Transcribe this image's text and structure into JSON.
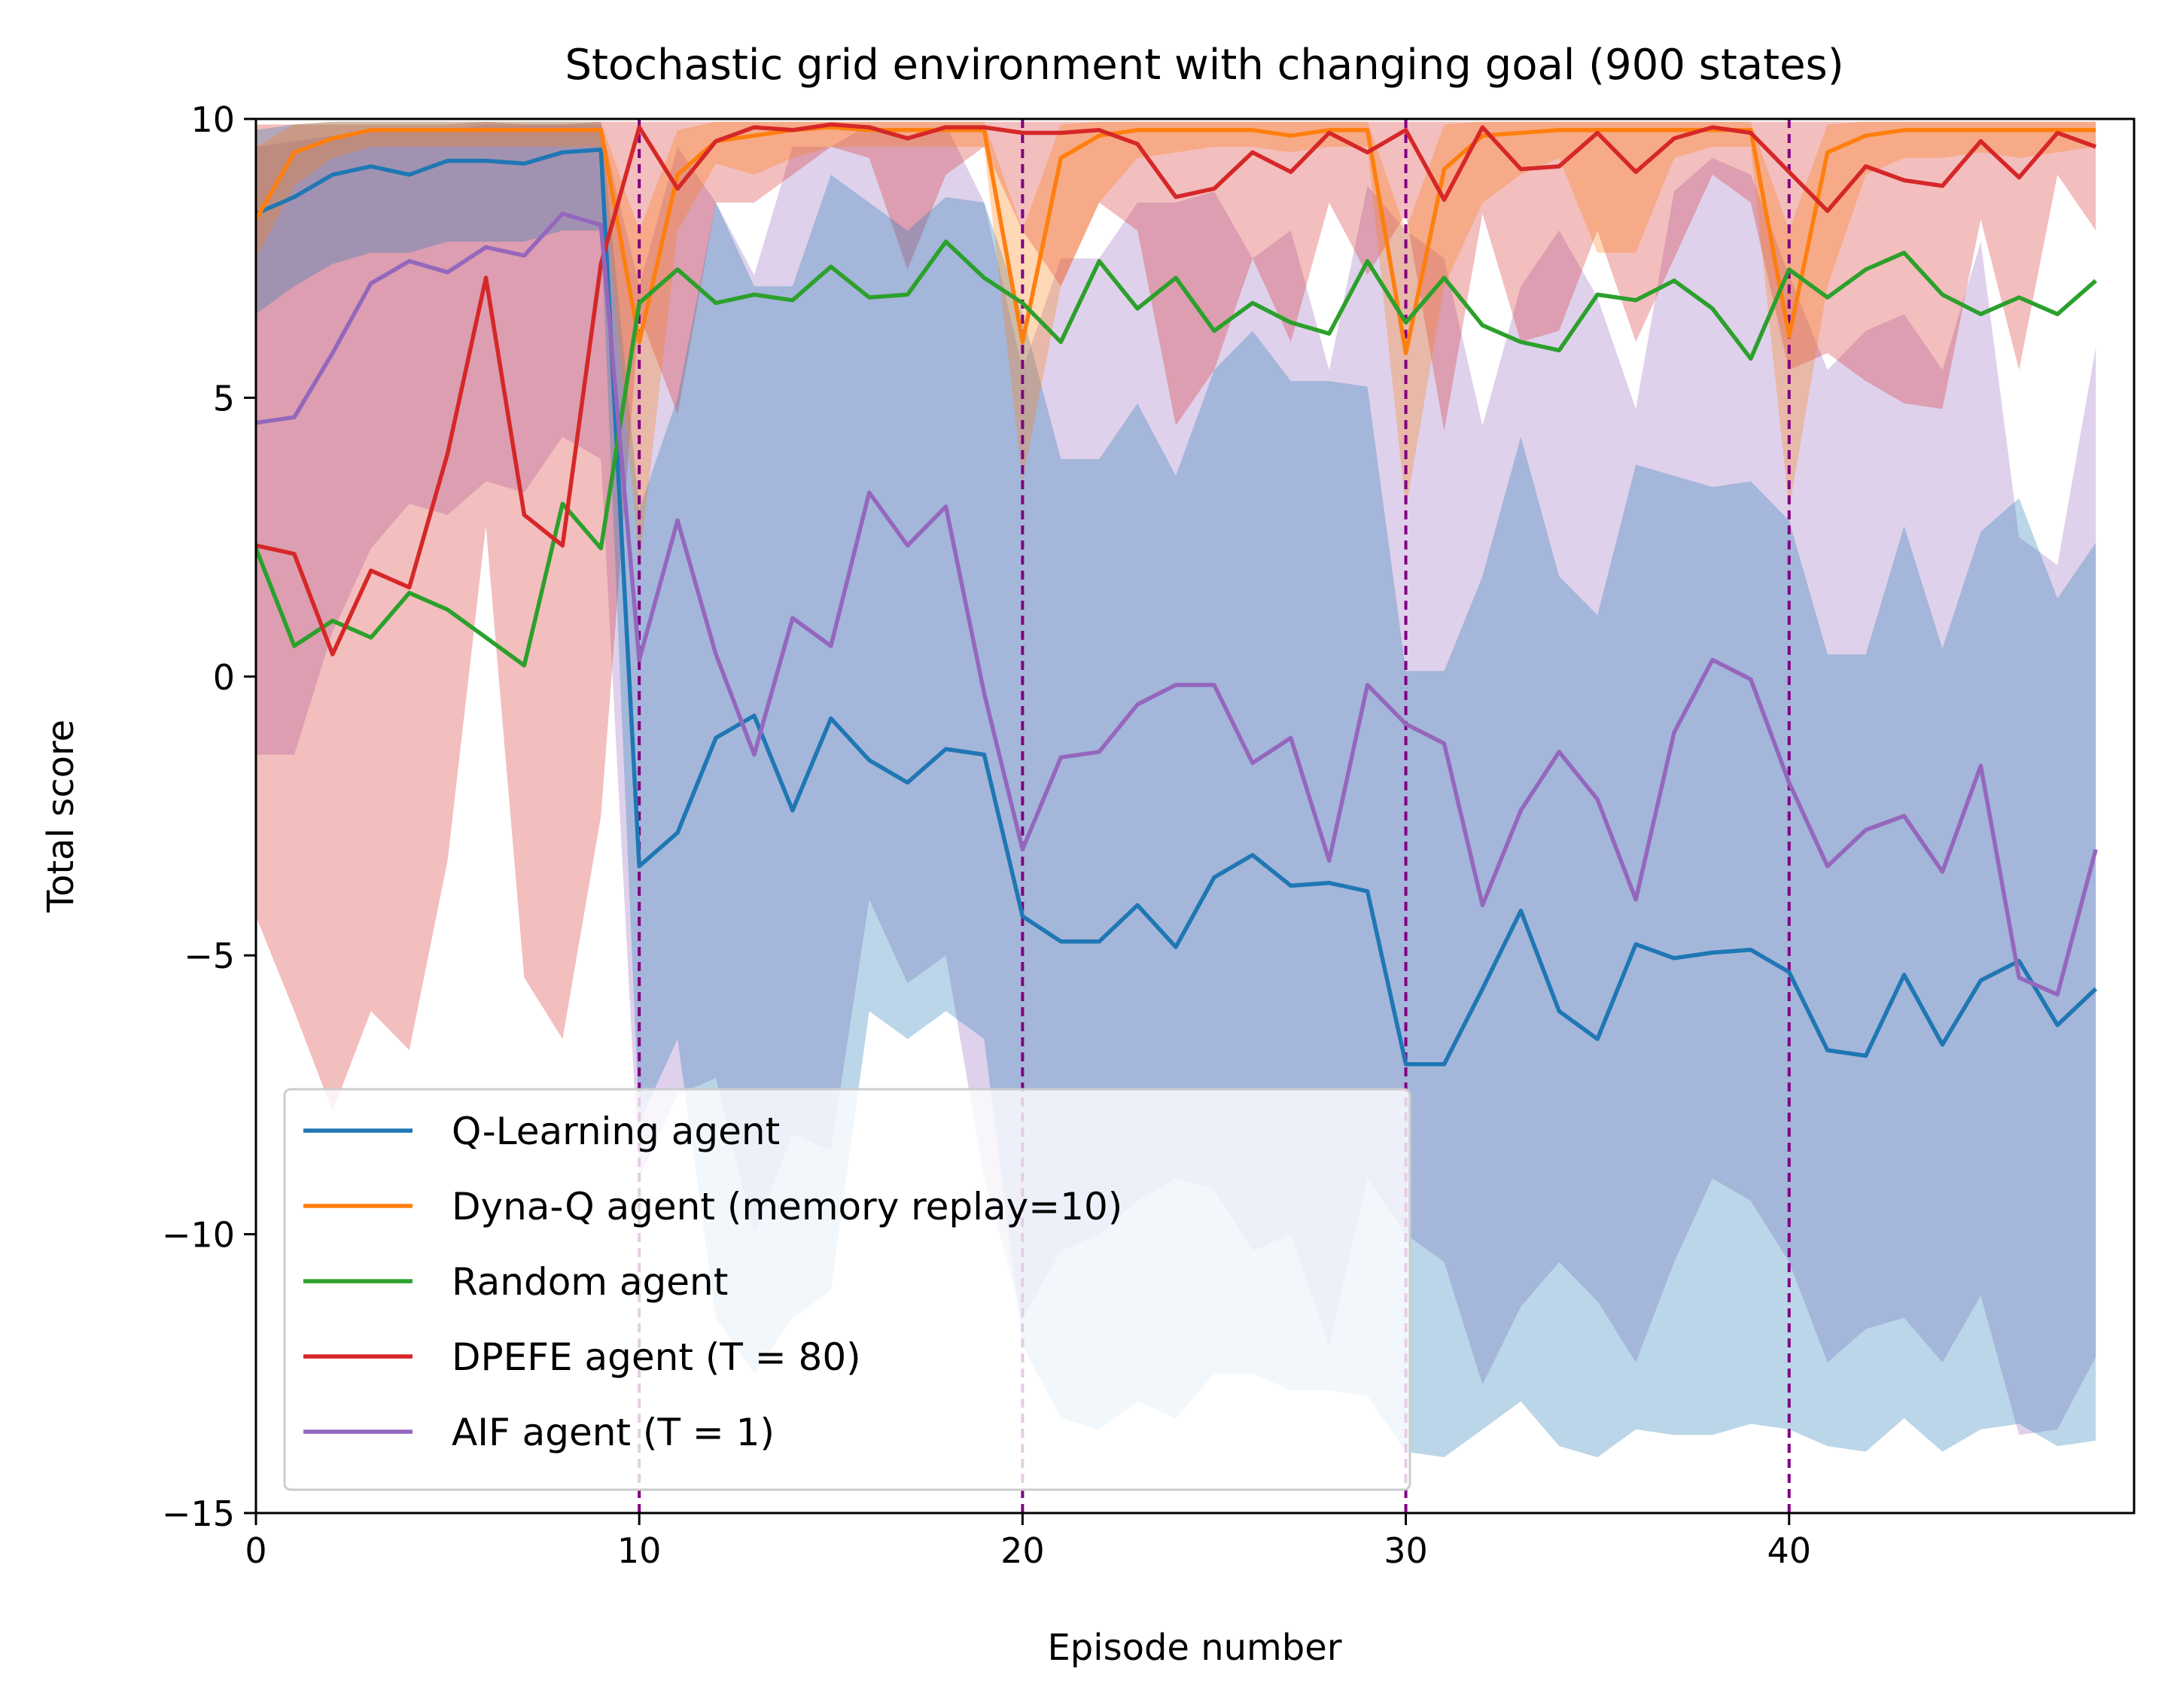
{
  "chart_data": {
    "type": "line",
    "title": "Stochastic grid environment with changing goal (900 states)",
    "xlabel": "Episode number",
    "ylabel": "Total score",
    "xlim": [
      0,
      49
    ],
    "ylim": [
      -15,
      10
    ],
    "xticks": [
      0,
      10,
      20,
      30,
      40
    ],
    "yticks": [
      10,
      5,
      0,
      -5,
      -10,
      -15
    ],
    "ytick_labels": [
      "10",
      "5",
      "0",
      "−5",
      "−10",
      "−15"
    ],
    "xtick_labels": [
      "0",
      "10",
      "20",
      "30",
      "40"
    ],
    "grid": false,
    "legend_position": "lower-left",
    "goal_change_lines": {
      "x": [
        10,
        20,
        30,
        40
      ],
      "color": "#800080",
      "style": "dashed"
    },
    "series": [
      {
        "name": "Q-Learning agent",
        "color": "#1f77b4",
        "x": [
          0,
          1,
          2,
          3,
          4,
          5,
          6,
          7,
          8,
          9,
          10,
          11,
          12,
          13,
          14,
          15,
          16,
          17,
          18,
          19,
          20,
          21,
          22,
          23,
          24,
          25,
          26,
          27,
          28,
          29,
          30,
          31,
          32,
          33,
          34,
          35,
          36,
          37,
          38,
          39,
          40,
          41,
          42,
          43,
          44,
          45,
          46,
          47,
          48
        ],
        "values": [
          8.3,
          8.6,
          9.0,
          9.15,
          9.0,
          9.25,
          9.25,
          9.2,
          9.4,
          9.45,
          -3.4,
          -2.8,
          -1.1,
          -0.7,
          -2.4,
          -0.75,
          -1.5,
          -1.9,
          -1.3,
          -1.4,
          -4.3,
          -4.75,
          -4.75,
          -4.1,
          -4.85,
          -3.6,
          -3.2,
          -3.75,
          -3.7,
          -3.85,
          -6.95,
          -6.95,
          -5.6,
          -4.2,
          -6.0,
          -6.5,
          -4.8,
          -5.05,
          -4.95,
          -4.9,
          -5.3,
          -6.7,
          -6.8,
          -5.35,
          -6.6,
          -5.45,
          -5.1,
          -6.25,
          -5.6
        ],
        "band_low": [
          6.5,
          7.0,
          7.4,
          7.6,
          7.6,
          7.8,
          7.8,
          7.8,
          8.0,
          8.0,
          -8.0,
          -6.5,
          -11.5,
          -12.5,
          -11.5,
          -11.0,
          -6.0,
          -6.5,
          -6.0,
          -6.5,
          -12.0,
          -13.3,
          -13.5,
          -13.0,
          -13.3,
          -12.5,
          -12.5,
          -12.8,
          -12.8,
          -12.9,
          -13.9,
          -14.0,
          -13.5,
          -13.0,
          -13.8,
          -14.0,
          -13.5,
          -13.6,
          -13.6,
          -13.4,
          -13.5,
          -13.8,
          -13.9,
          -13.3,
          -13.9,
          -13.5,
          -13.4,
          -13.8,
          -13.7
        ],
        "band_high": [
          9.8,
          9.9,
          9.95,
          9.95,
          9.95,
          9.95,
          9.95,
          9.95,
          9.95,
          9.95,
          3.0,
          5.0,
          8.5,
          7.0,
          7.0,
          9.0,
          8.5,
          8.0,
          8.6,
          8.5,
          6.5,
          3.9,
          3.9,
          4.9,
          3.6,
          5.5,
          6.2,
          5.3,
          5.3,
          5.2,
          0.1,
          0.1,
          1.8,
          4.3,
          1.8,
          1.1,
          3.8,
          3.6,
          3.4,
          3.5,
          2.8,
          0.4,
          0.4,
          2.7,
          0.5,
          2.6,
          3.2,
          1.4,
          2.4
        ]
      },
      {
        "name": "Dyna-Q agent (memory replay=10)",
        "color": "#ff7f0e",
        "x": [
          0,
          1,
          2,
          3,
          4,
          5,
          6,
          7,
          8,
          9,
          10,
          11,
          12,
          13,
          14,
          15,
          16,
          17,
          18,
          19,
          20,
          21,
          22,
          23,
          24,
          25,
          26,
          27,
          28,
          29,
          30,
          31,
          32,
          33,
          34,
          35,
          36,
          37,
          38,
          39,
          40,
          41,
          42,
          43,
          44,
          45,
          46,
          47,
          48
        ],
        "values": [
          8.2,
          9.4,
          9.65,
          9.8,
          9.8,
          9.8,
          9.8,
          9.8,
          9.8,
          9.8,
          6.0,
          9.0,
          9.6,
          9.7,
          9.8,
          9.85,
          9.8,
          9.8,
          9.8,
          9.8,
          6.0,
          9.3,
          9.7,
          9.8,
          9.8,
          9.8,
          9.8,
          9.7,
          9.8,
          9.8,
          5.8,
          9.1,
          9.7,
          9.75,
          9.8,
          9.8,
          9.8,
          9.8,
          9.8,
          9.8,
          6.1,
          9.4,
          9.7,
          9.8,
          9.8,
          9.8,
          9.8,
          9.8,
          9.8
        ],
        "band_low": [
          7.5,
          8.8,
          9.3,
          9.5,
          9.5,
          9.5,
          9.5,
          9.5,
          9.5,
          9.5,
          2.0,
          8.0,
          9.2,
          9.0,
          9.3,
          9.5,
          9.5,
          9.5,
          9.5,
          9.5,
          3.5,
          7.0,
          8.5,
          9.3,
          9.4,
          9.5,
          9.5,
          9.4,
          9.5,
          9.5,
          3.0,
          7.0,
          8.5,
          9.0,
          9.3,
          7.6,
          7.6,
          9.3,
          9.5,
          9.5,
          3.0,
          7.0,
          9.0,
          9.3,
          9.3,
          9.4,
          9.3,
          9.4,
          9.5
        ],
        "band_high": [
          9.5,
          9.9,
          9.95,
          9.95,
          9.95,
          9.95,
          9.95,
          9.95,
          9.95,
          9.95,
          8.0,
          9.8,
          9.95,
          9.95,
          9.95,
          9.95,
          9.95,
          9.95,
          9.95,
          9.95,
          8.0,
          9.9,
          9.95,
          9.95,
          9.95,
          9.95,
          9.95,
          9.95,
          9.95,
          9.95,
          8.0,
          9.9,
          9.95,
          9.95,
          9.95,
          9.95,
          9.95,
          9.95,
          9.95,
          9.95,
          8.0,
          9.9,
          9.95,
          9.95,
          9.95,
          9.95,
          9.95,
          9.95,
          9.95
        ]
      },
      {
        "name": "Random agent",
        "color": "#2ca02c",
        "x": [
          0,
          1,
          2,
          3,
          4,
          5,
          6,
          7,
          8,
          9,
          10,
          11,
          12,
          13,
          14,
          15,
          16,
          17,
          18,
          19,
          20,
          21,
          22,
          23,
          24,
          25,
          26,
          27,
          28,
          29,
          30,
          31,
          32,
          33,
          34,
          35,
          36,
          37,
          38,
          39,
          40,
          41,
          42,
          43,
          44,
          45,
          46,
          47,
          48
        ],
        "values": [
          2.3,
          0.55,
          1.0,
          0.7,
          1.5,
          1.2,
          0.7,
          0.2,
          3.1,
          2.3,
          6.7,
          7.3,
          6.7,
          6.85,
          6.75,
          7.35,
          6.8,
          6.85,
          7.8,
          7.15,
          6.7,
          6.0,
          7.45,
          6.6,
          7.15,
          6.2,
          6.7,
          6.35,
          6.15,
          7.45,
          6.35,
          7.15,
          6.3,
          6.0,
          5.85,
          6.85,
          6.75,
          7.1,
          6.6,
          5.7,
          7.3,
          6.8,
          7.3,
          7.6,
          6.85,
          6.5,
          6.8,
          6.5,
          7.1
        ],
        "band_low": [],
        "band_high": []
      },
      {
        "name": "DPEFE agent (T = 80)",
        "color": "#d62728",
        "x": [
          0,
          1,
          2,
          3,
          4,
          5,
          6,
          7,
          8,
          9,
          10,
          11,
          12,
          13,
          14,
          15,
          16,
          17,
          18,
          19,
          20,
          21,
          22,
          23,
          24,
          25,
          26,
          27,
          28,
          29,
          30,
          31,
          32,
          33,
          34,
          35,
          36,
          37,
          38,
          39,
          40,
          41,
          42,
          43,
          44,
          45,
          46,
          47,
          48
        ],
        "values": [
          2.35,
          2.2,
          0.4,
          1.9,
          1.6,
          4.0,
          7.15,
          2.9,
          2.35,
          7.4,
          9.85,
          8.75,
          9.6,
          9.85,
          9.8,
          9.9,
          9.85,
          9.65,
          9.85,
          9.85,
          9.75,
          9.75,
          9.8,
          9.55,
          8.6,
          8.75,
          9.4,
          9.05,
          9.75,
          9.4,
          9.8,
          8.55,
          9.85,
          9.1,
          9.15,
          9.75,
          9.05,
          9.65,
          9.85,
          9.75,
          9.05,
          8.35,
          9.15,
          8.9,
          8.8,
          9.6,
          8.95,
          9.75,
          9.5
        ],
        "band_low": [
          -4.3,
          -6.0,
          -7.8,
          -6.0,
          -6.7,
          -3.3,
          2.7,
          -5.4,
          -6.5,
          -2.5,
          6.5,
          4.7,
          8.5,
          8.5,
          9.0,
          9.5,
          9.3,
          7.3,
          9.0,
          9.5,
          8.0,
          7.0,
          8.5,
          8.0,
          4.5,
          5.5,
          7.5,
          6.0,
          8.5,
          7.2,
          8.3,
          4.4,
          8.3,
          6.0,
          6.2,
          8.0,
          6.0,
          7.5,
          9.0,
          8.5,
          5.5,
          5.8,
          5.3,
          4.9,
          4.8,
          8.2,
          5.5,
          9.0,
          8.0
        ],
        "band_high": [
          9.9,
          9.9,
          9.9,
          9.9,
          9.9,
          9.9,
          9.95,
          9.9,
          9.9,
          9.95,
          9.95,
          9.95,
          9.95,
          9.95,
          9.95,
          9.95,
          9.95,
          9.95,
          9.95,
          9.95,
          9.95,
          9.95,
          9.95,
          9.95,
          9.95,
          9.95,
          9.95,
          9.95,
          9.95,
          9.95,
          9.95,
          9.95,
          9.95,
          9.95,
          9.95,
          9.95,
          9.95,
          9.95,
          9.95,
          9.95,
          9.95,
          9.95,
          9.95,
          9.95,
          9.95,
          9.95,
          9.95,
          9.95,
          9.95
        ]
      },
      {
        "name": "AIF agent (T = 1)",
        "color": "#9467bd",
        "x": [
          0,
          1,
          2,
          3,
          4,
          5,
          6,
          7,
          8,
          9,
          10,
          11,
          12,
          13,
          14,
          15,
          16,
          17,
          18,
          19,
          20,
          21,
          22,
          23,
          24,
          25,
          26,
          27,
          28,
          29,
          30,
          31,
          32,
          33,
          34,
          35,
          36,
          37,
          38,
          39,
          40,
          41,
          42,
          43,
          44,
          45,
          46,
          47,
          48
        ],
        "values": [
          4.55,
          4.65,
          5.8,
          7.05,
          7.45,
          7.25,
          7.7,
          7.55,
          8.3,
          8.1,
          0.3,
          2.8,
          0.4,
          -1.4,
          1.05,
          0.55,
          3.3,
          2.35,
          3.05,
          -0.3,
          -3.1,
          -1.45,
          -1.35,
          -0.5,
          -0.15,
          -0.15,
          -1.55,
          -1.1,
          -3.3,
          -0.15,
          -0.85,
          -1.2,
          -4.1,
          -2.4,
          -1.35,
          -2.2,
          -4.0,
          -1.0,
          0.3,
          -0.05,
          -1.9,
          -3.4,
          -2.75,
          -2.5,
          -3.5,
          -1.6,
          -5.4,
          -5.7,
          -3.1
        ],
        "band_low": [
          -1.4,
          -1.4,
          0.8,
          2.3,
          3.1,
          2.9,
          3.5,
          3.3,
          4.3,
          3.9,
          -9.0,
          -7.5,
          -7.2,
          -10.0,
          -8.2,
          -8.5,
          -4.0,
          -5.5,
          -5.0,
          -9.0,
          -11.5,
          -10.3,
          -10.0,
          -9.4,
          -9.0,
          -9.2,
          -10.3,
          -10.0,
          -12.0,
          -9.0,
          -10.0,
          -10.5,
          -12.7,
          -11.3,
          -10.5,
          -11.2,
          -12.3,
          -10.5,
          -9.0,
          -9.4,
          -10.5,
          -12.3,
          -11.7,
          -11.5,
          -12.3,
          -11.1,
          -13.6,
          -13.5,
          -12.2
        ],
        "band_high": [
          9.5,
          9.6,
          9.7,
          9.8,
          9.8,
          9.8,
          9.9,
          9.9,
          9.9,
          9.9,
          7.0,
          9.5,
          8.5,
          7.2,
          9.5,
          9.5,
          9.9,
          9.7,
          9.9,
          8.5,
          5.5,
          7.5,
          7.5,
          8.5,
          8.5,
          8.7,
          7.5,
          8.0,
          5.5,
          8.8,
          8.0,
          7.5,
          4.5,
          7.0,
          8.0,
          6.8,
          4.8,
          8.7,
          9.3,
          9.0,
          7.2,
          5.5,
          6.2,
          6.5,
          5.5,
          7.8,
          2.5,
          2.0,
          5.9
        ]
      }
    ]
  }
}
